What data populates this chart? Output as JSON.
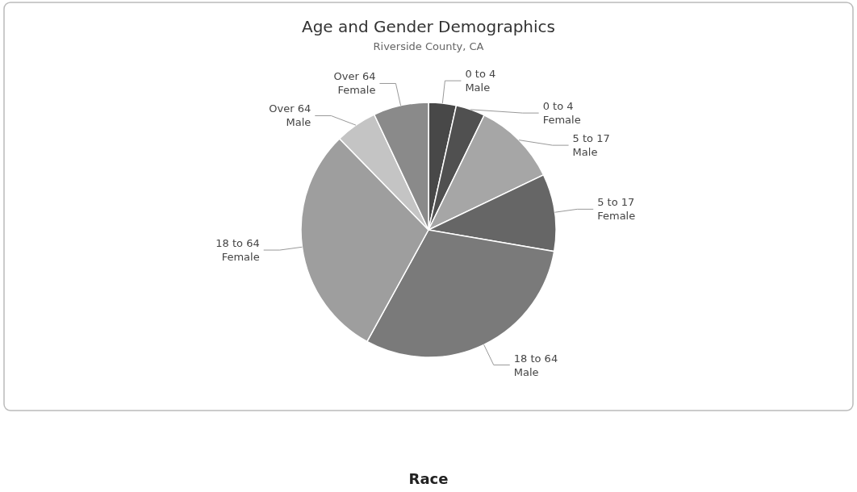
{
  "chart_data": {
    "type": "pie",
    "title": "Age and Gender Demographics",
    "subtitle": "Riverside County, CA",
    "categories": [
      "0 to 4\nMale",
      "0 to 4\nFemale",
      "5 to 17\nMale",
      "5 to 17\nFemale",
      "18 to 64\nMale",
      "18 to 64\nFemale",
      "Over 64\nMale",
      "Over 64\nFemale"
    ],
    "values": [
      3.5,
      3.7,
      10.7,
      9.8,
      30.3,
      29.7,
      5.3,
      7.0
    ],
    "colors": [
      "#484848",
      "#505050",
      "#a6a6a6",
      "#666666",
      "#7a7a7a",
      "#9e9e9e",
      "#c4c4c4",
      "#8a8a8a"
    ],
    "annotations": [
      "Race"
    ]
  }
}
